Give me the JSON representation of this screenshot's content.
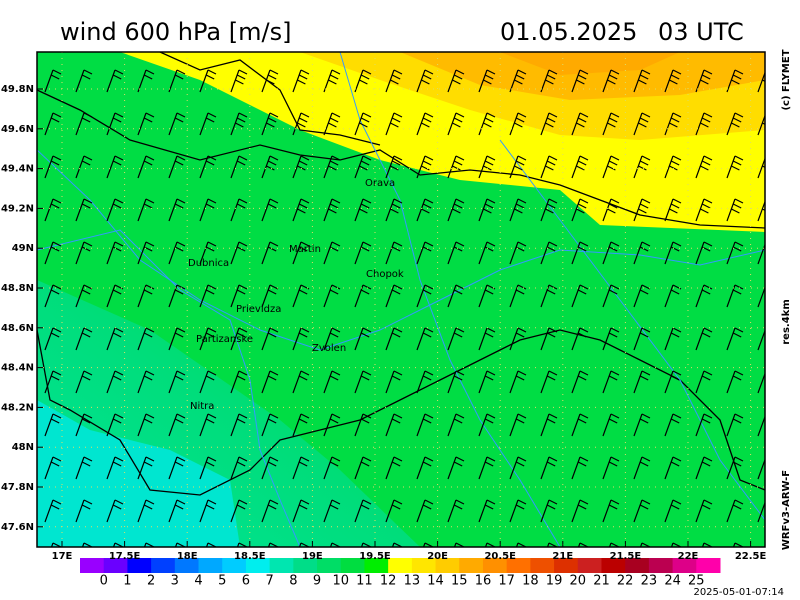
{
  "header": {
    "title": "wind 600 hPa [m/s]",
    "date": "01.05.2025",
    "time": "03 UTC"
  },
  "side": {
    "copyright": "(c) FLYMET",
    "resolution": "res.4km",
    "model": "WRFv3-ARW-F"
  },
  "footer": {
    "timestamp": "2025-05-01-07:14"
  },
  "map": {
    "lon_ticks": [
      "17E",
      "17.5E",
      "18E",
      "18.5E",
      "19E",
      "19.5E",
      "20E",
      "20.5E",
      "21E",
      "21.5E",
      "22E",
      "22.5E"
    ],
    "lat_ticks": [
      "49.8N",
      "49.6N",
      "49.4N",
      "49.2N",
      "49N",
      "48.8N",
      "48.6N",
      "48.4N",
      "48.2N",
      "48N",
      "47.8N",
      "47.6N"
    ],
    "cities": [
      "Orava",
      "Martin",
      "Dubnica",
      "Chopok",
      "Prievidza",
      "Partizanske",
      "Zvolen",
      "Nitra"
    ]
  },
  "colorbar": {
    "labels": [
      0,
      1,
      2,
      3,
      4,
      5,
      6,
      7,
      8,
      9,
      10,
      11,
      12,
      13,
      14,
      15,
      16,
      17,
      18,
      19,
      20,
      21,
      22,
      23,
      24,
      25
    ],
    "colors": [
      "#9900ff",
      "#6a00ff",
      "#0000ff",
      "#0040ff",
      "#0078ff",
      "#00a8ff",
      "#00ccff",
      "#00eeee",
      "#00e6b0",
      "#00dd88",
      "#00dd66",
      "#00dd40",
      "#00ee00",
      "#ffff00",
      "#ffe600",
      "#ffcc00",
      "#ffaa00",
      "#ff9000",
      "#ff7000",
      "#ee5000",
      "#dd3000",
      "#cc2020",
      "#bb0000",
      "#a80020",
      "#bb0050",
      "#dd0088",
      "#ff00aa"
    ]
  }
}
